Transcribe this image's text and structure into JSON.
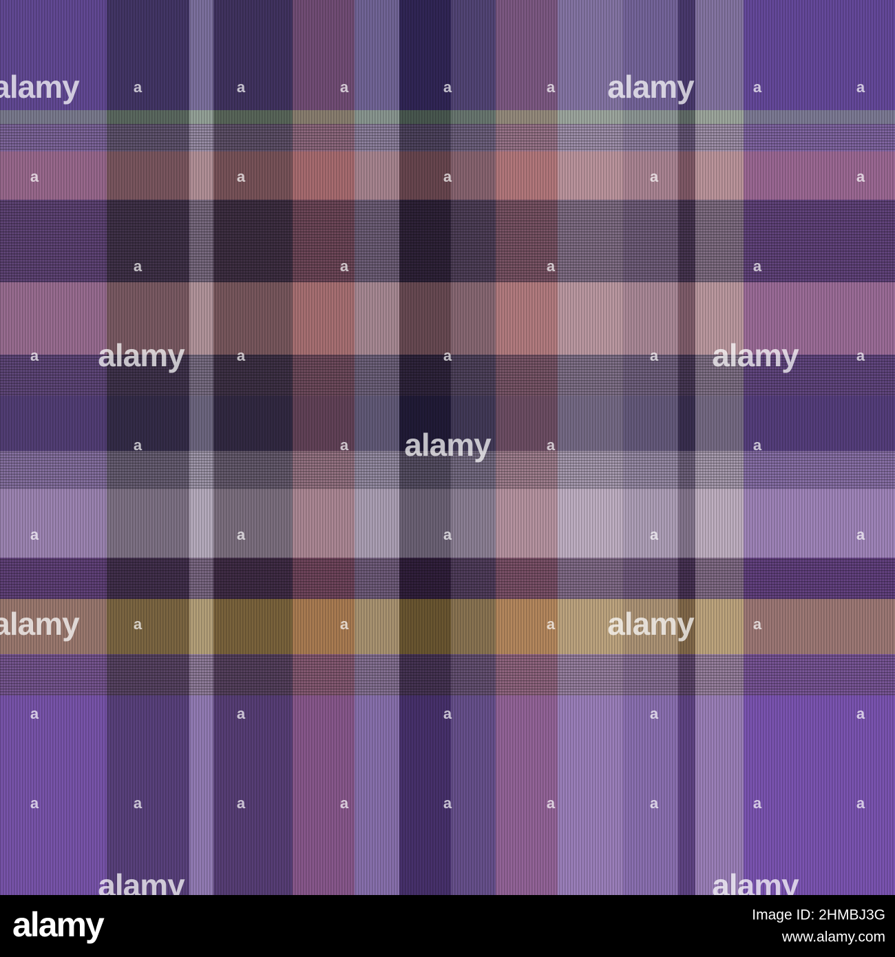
{
  "watermark": {
    "word": "alamy",
    "letter": "a"
  },
  "footer": {
    "logo": "alamy",
    "image_id": "Image ID: 2HMBJ3G",
    "url": "www.alamy.com"
  }
}
